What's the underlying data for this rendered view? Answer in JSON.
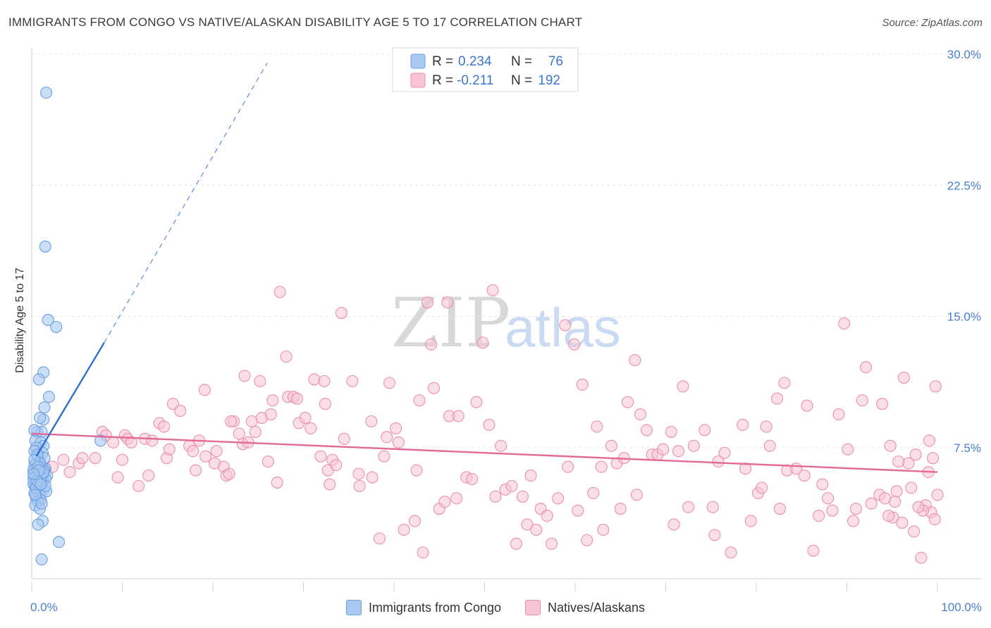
{
  "header": {
    "title": "IMMIGRANTS FROM CONGO VS NATIVE/ALASKAN DISABILITY AGE 5 TO 17 CORRELATION CHART",
    "source": "Source: ZipAtlas.com"
  },
  "watermark": {
    "zip": "ZIP",
    "atlas": "atlas"
  },
  "chart_data": {
    "type": "scatter",
    "title": "IMMIGRANTS FROM CONGO VS NATIVE/ALASKAN DISABILITY AGE 5 TO 17 CORRELATION CHART",
    "xlabel": "",
    "ylabel": "Disability Age 5 to 17",
    "xlim": [
      0,
      100
    ],
    "ylim": [
      0,
      30
    ],
    "x_tick_labels": [
      "0.0%",
      "100.0%"
    ],
    "y_ticks": [
      7.5,
      15.0,
      22.5,
      30.0
    ],
    "y_tick_labels": [
      "7.5%",
      "15.0%",
      "22.5%",
      "30.0%"
    ],
    "grid": true,
    "legend": {
      "placement": "top-center",
      "r_label": "R =",
      "n_label": "N =",
      "entries": [
        {
          "r": "0.234",
          "n": "76"
        },
        {
          "r": "-0.211",
          "n": "192"
        }
      ]
    },
    "colors": {
      "congo_fill": "#a9c8f2",
      "congo_stroke": "#6a9fe0",
      "congo_line": "#2f6fd0",
      "native_fill": "#f8c4d4",
      "native_stroke": "#ea8fae",
      "native_line": "#e36a98"
    },
    "series": [
      {
        "name": "Immigrants from Congo",
        "trend": {
          "x": [
            0.5,
            8.0
          ],
          "y": [
            7.0,
            13.5
          ],
          "dashed_to": [
            26.0,
            29.5
          ]
        },
        "points": [
          [
            1.6,
            27.8
          ],
          [
            1.5,
            19.0
          ],
          [
            1.8,
            14.8
          ],
          [
            2.7,
            14.4
          ],
          [
            1.3,
            11.8
          ],
          [
            0.8,
            11.4
          ],
          [
            1.9,
            10.4
          ],
          [
            1.4,
            9.8
          ],
          [
            1.3,
            9.1
          ],
          [
            0.9,
            9.2
          ],
          [
            0.6,
            8.4
          ],
          [
            1.1,
            8.4
          ],
          [
            0.4,
            7.9
          ],
          [
            1.0,
            7.8
          ],
          [
            1.3,
            7.6
          ],
          [
            0.5,
            7.5
          ],
          [
            1.2,
            7.2
          ],
          [
            0.3,
            7.3
          ],
          [
            0.7,
            7.0
          ],
          [
            0.5,
            6.6
          ],
          [
            0.9,
            6.7
          ],
          [
            0.3,
            6.5
          ],
          [
            1.1,
            6.4
          ],
          [
            0.6,
            6.3
          ],
          [
            1.5,
            6.3
          ],
          [
            0.2,
            6.2
          ],
          [
            0.8,
            6.1
          ],
          [
            1.4,
            6.2
          ],
          [
            0.4,
            6.0
          ],
          [
            1.0,
            6.0
          ],
          [
            0.6,
            5.9
          ],
          [
            1.7,
            5.9
          ],
          [
            0.3,
            5.8
          ],
          [
            1.2,
            5.8
          ],
          [
            0.9,
            5.7
          ],
          [
            0.5,
            5.6
          ],
          [
            1.5,
            5.7
          ],
          [
            0.7,
            5.5
          ],
          [
            0.2,
            5.4
          ],
          [
            1.1,
            5.4
          ],
          [
            0.4,
            5.3
          ],
          [
            0.8,
            5.2
          ],
          [
            1.3,
            5.1
          ],
          [
            0.6,
            5.0
          ],
          [
            0.3,
            4.9
          ],
          [
            0.9,
            4.8
          ],
          [
            1.6,
            5.0
          ],
          [
            0.5,
            4.6
          ],
          [
            1.0,
            4.5
          ],
          [
            0.7,
            4.4
          ],
          [
            0.4,
            4.2
          ],
          [
            0.9,
            4.0
          ],
          [
            1.2,
            3.3
          ],
          [
            0.7,
            3.1
          ],
          [
            3.0,
            2.1
          ],
          [
            1.1,
            1.1
          ],
          [
            7.6,
            7.9
          ],
          [
            0.3,
            8.5
          ],
          [
            1.4,
            6.9
          ],
          [
            0.6,
            7.1
          ],
          [
            0.9,
            6.6
          ],
          [
            1.2,
            6.0
          ],
          [
            0.2,
            5.7
          ],
          [
            0.8,
            5.5
          ],
          [
            1.5,
            5.3
          ],
          [
            0.5,
            5.2
          ],
          [
            1.0,
            5.8
          ],
          [
            0.3,
            6.8
          ],
          [
            0.7,
            6.4
          ],
          [
            1.3,
            6.1
          ],
          [
            0.6,
            5.6
          ],
          [
            0.4,
            4.8
          ],
          [
            1.1,
            4.3
          ],
          [
            0.8,
            6.2
          ],
          [
            0.2,
            6.0
          ],
          [
            1.0,
            5.4
          ]
        ]
      },
      {
        "name": "Natives/Alaskans",
        "trend": {
          "x": [
            0,
            100
          ],
          "y": [
            8.3,
            6.1
          ]
        },
        "points": [
          [
            1.2,
            6.4
          ],
          [
            1.5,
            6.1
          ],
          [
            2.3,
            6.4
          ],
          [
            3.5,
            6.8
          ],
          [
            4.2,
            6.1
          ],
          [
            5.2,
            6.6
          ],
          [
            5.6,
            6.9
          ],
          [
            7.0,
            6.9
          ],
          [
            7.8,
            8.4
          ],
          [
            8.2,
            8.2
          ],
          [
            9.0,
            7.8
          ],
          [
            9.5,
            5.8
          ],
          [
            10.0,
            6.8
          ],
          [
            10.3,
            8.2
          ],
          [
            10.6,
            8.0
          ],
          [
            11.0,
            7.8
          ],
          [
            11.8,
            5.3
          ],
          [
            12.5,
            8.0
          ],
          [
            12.9,
            5.9
          ],
          [
            13.3,
            7.9
          ],
          [
            14.1,
            8.9
          ],
          [
            14.6,
            8.7
          ],
          [
            14.9,
            6.9
          ],
          [
            15.2,
            7.4
          ],
          [
            15.6,
            10.0
          ],
          [
            16.4,
            9.6
          ],
          [
            17.4,
            7.6
          ],
          [
            17.8,
            7.3
          ],
          [
            18.1,
            6.2
          ],
          [
            18.5,
            7.9
          ],
          [
            19.2,
            7.0
          ],
          [
            19.1,
            10.8
          ],
          [
            20.2,
            6.6
          ],
          [
            20.4,
            7.3
          ],
          [
            21.2,
            6.4
          ],
          [
            21.5,
            5.9
          ],
          [
            21.8,
            6.0
          ],
          [
            22.3,
            9.0
          ],
          [
            22.0,
            9.0
          ],
          [
            22.9,
            8.3
          ],
          [
            23.3,
            7.7
          ],
          [
            23.5,
            11.6
          ],
          [
            23.9,
            7.8
          ],
          [
            24.3,
            9.0
          ],
          [
            24.7,
            8.4
          ],
          [
            25.2,
            11.3
          ],
          [
            25.4,
            9.2
          ],
          [
            26.1,
            6.7
          ],
          [
            26.4,
            9.4
          ],
          [
            26.6,
            10.2
          ],
          [
            27.1,
            5.5
          ],
          [
            27.4,
            16.4
          ],
          [
            28.1,
            12.7
          ],
          [
            28.3,
            10.4
          ],
          [
            28.9,
            10.4
          ],
          [
            29.3,
            10.3
          ],
          [
            29.5,
            8.9
          ],
          [
            30.2,
            9.2
          ],
          [
            30.8,
            8.6
          ],
          [
            31.2,
            11.4
          ],
          [
            31.9,
            7.0
          ],
          [
            32.3,
            11.3
          ],
          [
            32.4,
            10.0
          ],
          [
            32.7,
            6.2
          ],
          [
            32.9,
            5.4
          ],
          [
            33.2,
            6.8
          ],
          [
            33.6,
            6.5
          ],
          [
            34.2,
            15.2
          ],
          [
            34.5,
            8.0
          ],
          [
            35.4,
            11.3
          ],
          [
            36.1,
            6.0
          ],
          [
            36.2,
            5.3
          ],
          [
            37.5,
            9.0
          ],
          [
            37.6,
            5.8
          ],
          [
            38.4,
            2.3
          ],
          [
            38.9,
            7.0
          ],
          [
            39.2,
            8.1
          ],
          [
            39.5,
            11.2
          ],
          [
            40.2,
            8.6
          ],
          [
            40.5,
            7.8
          ],
          [
            41.1,
            2.8
          ],
          [
            42.3,
            3.3
          ],
          [
            42.5,
            6.2
          ],
          [
            42.8,
            10.2
          ],
          [
            43.2,
            1.5
          ],
          [
            43.7,
            15.8
          ],
          [
            44.1,
            13.4
          ],
          [
            44.4,
            10.9
          ],
          [
            45.0,
            4.0
          ],
          [
            45.6,
            4.4
          ],
          [
            45.9,
            15.8
          ],
          [
            46.1,
            9.3
          ],
          [
            46.9,
            4.6
          ],
          [
            47.1,
            9.3
          ],
          [
            48.0,
            5.8
          ],
          [
            48.6,
            5.7
          ],
          [
            49.1,
            10.1
          ],
          [
            49.8,
            13.5
          ],
          [
            50.5,
            8.8
          ],
          [
            50.9,
            16.5
          ],
          [
            51.2,
            4.7
          ],
          [
            51.8,
            7.6
          ],
          [
            52.3,
            5.1
          ],
          [
            53.0,
            5.3
          ],
          [
            53.5,
            2.0
          ],
          [
            54.2,
            4.7
          ],
          [
            54.7,
            3.1
          ],
          [
            55.1,
            5.9
          ],
          [
            55.7,
            2.8
          ],
          [
            56.2,
            4.0
          ],
          [
            56.9,
            3.6
          ],
          [
            57.4,
            2.0
          ],
          [
            58.1,
            4.6
          ],
          [
            58.9,
            14.5
          ],
          [
            59.2,
            6.4
          ],
          [
            59.9,
            13.4
          ],
          [
            60.3,
            3.9
          ],
          [
            60.8,
            11.1
          ],
          [
            61.3,
            2.2
          ],
          [
            62.0,
            4.9
          ],
          [
            62.4,
            8.7
          ],
          [
            62.9,
            6.4
          ],
          [
            63.1,
            2.8
          ],
          [
            64.0,
            7.6
          ],
          [
            64.6,
            6.6
          ],
          [
            65.0,
            4.0
          ],
          [
            65.4,
            6.9
          ],
          [
            65.8,
            10.1
          ],
          [
            66.6,
            12.5
          ],
          [
            66.8,
            4.8
          ],
          [
            67.2,
            9.4
          ],
          [
            67.9,
            8.5
          ],
          [
            68.5,
            7.1
          ],
          [
            69.1,
            7.1
          ],
          [
            69.7,
            7.4
          ],
          [
            70.6,
            8.4
          ],
          [
            70.9,
            3.1
          ],
          [
            71.4,
            7.3
          ],
          [
            71.9,
            11.0
          ],
          [
            72.5,
            4.1
          ],
          [
            73.1,
            7.6
          ],
          [
            74.3,
            8.5
          ],
          [
            75.2,
            4.1
          ],
          [
            75.4,
            2.5
          ],
          [
            75.8,
            6.7
          ],
          [
            76.5,
            7.2
          ],
          [
            77.2,
            1.5
          ],
          [
            78.5,
            8.8
          ],
          [
            78.8,
            6.3
          ],
          [
            79.4,
            3.3
          ],
          [
            80.2,
            4.9
          ],
          [
            80.6,
            5.2
          ],
          [
            81.1,
            8.7
          ],
          [
            81.5,
            7.6
          ],
          [
            82.3,
            10.3
          ],
          [
            82.6,
            4.0
          ],
          [
            83.1,
            11.2
          ],
          [
            83.4,
            6.2
          ],
          [
            84.4,
            6.3
          ],
          [
            85.3,
            5.9
          ],
          [
            85.6,
            9.9
          ],
          [
            86.3,
            1.6
          ],
          [
            86.9,
            3.6
          ],
          [
            87.3,
            5.4
          ],
          [
            87.9,
            4.6
          ],
          [
            88.4,
            3.9
          ],
          [
            89.1,
            9.4
          ],
          [
            89.7,
            14.6
          ],
          [
            90.1,
            7.4
          ],
          [
            90.7,
            3.3
          ],
          [
            91.0,
            4.0
          ],
          [
            91.7,
            10.2
          ],
          [
            92.1,
            12.1
          ],
          [
            92.7,
            4.3
          ],
          [
            93.6,
            4.8
          ],
          [
            93.9,
            10.0
          ],
          [
            94.8,
            7.6
          ],
          [
            95.1,
            3.5
          ],
          [
            95.5,
            5.0
          ],
          [
            96.3,
            11.5
          ],
          [
            97.1,
            5.2
          ],
          [
            97.6,
            7.1
          ],
          [
            98.2,
            1.2
          ],
          [
            98.7,
            4.2
          ],
          [
            99.0,
            6.1
          ],
          [
            99.3,
            3.8
          ],
          [
            99.7,
            3.4
          ],
          [
            99.8,
            11.0
          ],
          [
            100.0,
            4.8
          ],
          [
            99.5,
            6.9
          ],
          [
            99.1,
            7.9
          ],
          [
            98.4,
            3.9
          ],
          [
            97.9,
            4.1
          ],
          [
            97.4,
            2.7
          ],
          [
            96.8,
            6.6
          ],
          [
            96.1,
            3.2
          ],
          [
            95.7,
            6.7
          ],
          [
            95.3,
            4.4
          ],
          [
            94.6,
            3.6
          ],
          [
            94.2,
            4.6
          ]
        ]
      }
    ]
  },
  "bottom_legend": [
    {
      "label": "Immigrants from Congo"
    },
    {
      "label": "Natives/Alaskans"
    }
  ]
}
